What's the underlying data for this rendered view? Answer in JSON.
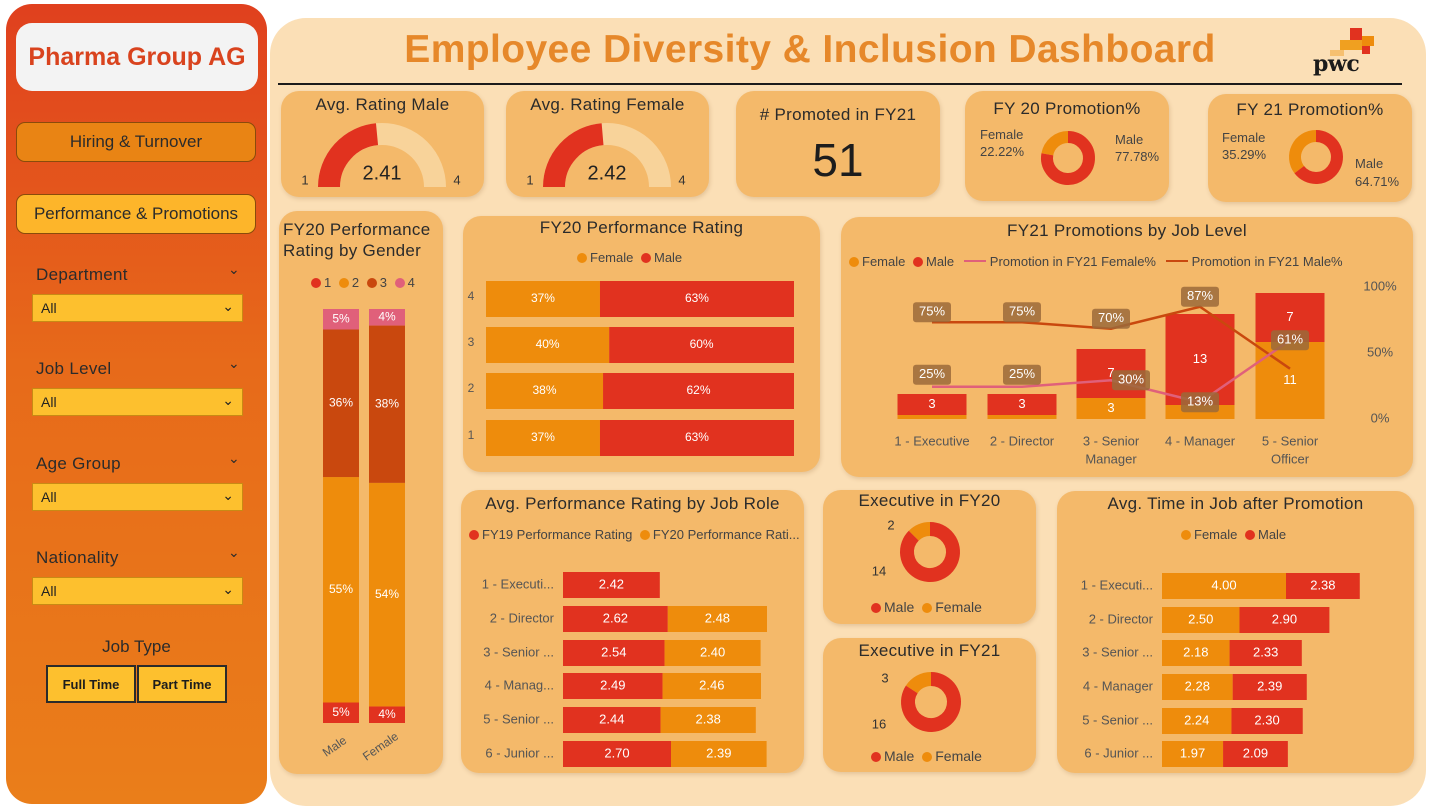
{
  "brand": "Pharma Group AG",
  "nav": {
    "hiring": "Hiring & Turnover",
    "performance": "Performance & Promotions"
  },
  "filters": [
    {
      "label": "Department",
      "value": "All"
    },
    {
      "label": "Job Level",
      "value": "All"
    },
    {
      "label": "Age Group",
      "value": "All"
    },
    {
      "label": "Nationality",
      "value": "All"
    }
  ],
  "job_type": {
    "label": "Job Type",
    "full": "Full Time",
    "part": "Part Time"
  },
  "title": "Employee Diversity & Inclusion Dashboard",
  "logo_text": "pwc",
  "colors": {
    "female": "#ee8c0c",
    "male": "#e1321f",
    "r1": "#e1321f",
    "r2": "#ee8c0c",
    "r3": "#c9480e",
    "r4": "#e0607a",
    "line_female": "#e0607a",
    "line_male": "#c9480e"
  },
  "kpi": {
    "rating_male": {
      "title": "Avg. Rating Male",
      "value": 2.41,
      "value_label": "2.41",
      "min": "1",
      "max": "4"
    },
    "rating_female": {
      "title": "Avg. Rating Female",
      "value": 2.42,
      "value_label": "2.42",
      "min": "1",
      "max": "4"
    },
    "promoted": {
      "title": "# Promoted in FY21",
      "value": "51"
    },
    "fy20": {
      "title": "FY 20 Promotion%",
      "female_label": "Female",
      "female_pct": "22.22%",
      "male_label": "Male",
      "male_pct": "77.78%",
      "female": 22.22,
      "male": 77.78
    },
    "fy21": {
      "title": "FY 21 Promotion%",
      "female_label": "Female",
      "female_pct": "35.29%",
      "male_label": "Male",
      "male_pct": "64.71%",
      "female": 35.29,
      "male": 64.71
    }
  },
  "chart_data": [
    {
      "id": "gender_rating",
      "type": "bar",
      "title": "FY20 Performance Rating by Gender",
      "categories": [
        "Male",
        "Female"
      ],
      "legend": [
        "1",
        "2",
        "3",
        "4"
      ],
      "series": [
        {
          "name": "1",
          "values": [
            5,
            4
          ],
          "labels": [
            "5%",
            "4%"
          ]
        },
        {
          "name": "2",
          "values": [
            55,
            54
          ],
          "labels": [
            "55%",
            "54%"
          ]
        },
        {
          "name": "3",
          "values": [
            36,
            38
          ],
          "labels": [
            "36%",
            "38%"
          ]
        },
        {
          "name": "4",
          "values": [
            5,
            4
          ],
          "labels": [
            "5%",
            "4%"
          ]
        }
      ]
    },
    {
      "id": "perf_rating",
      "type": "bar",
      "title": "FY20 Performance Rating",
      "legend": [
        "Female",
        "Male"
      ],
      "categories": [
        "4",
        "3",
        "2",
        "1"
      ],
      "series": [
        {
          "name": "Female",
          "values": [
            37,
            40,
            38,
            37
          ],
          "labels": [
            "37%",
            "40%",
            "38%",
            "37%"
          ]
        },
        {
          "name": "Male",
          "values": [
            63,
            60,
            62,
            63
          ],
          "labels": [
            "63%",
            "60%",
            "62%",
            "63%"
          ]
        }
      ]
    },
    {
      "id": "promo_level",
      "type": "bar",
      "title": "FY21 Promotions by Job Level",
      "legend": [
        "Female",
        "Male",
        "Promotion in FY21 Female%",
        "Promotion in FY21 Male%"
      ],
      "categories": [
        "1 - Executive",
        "2 - Director",
        "3 - Senior Manager",
        "4 - Manager",
        "5 - Senior Officer"
      ],
      "category_lines": [
        [
          "1 - Executive"
        ],
        [
          "2 - Director"
        ],
        [
          "3 - Senior",
          "Manager"
        ],
        [
          "4 - Manager"
        ],
        [
          "5 - Senior",
          "Officer"
        ]
      ],
      "female": [
        0,
        0,
        3,
        2,
        11
      ],
      "male": [
        3,
        3,
        7,
        13,
        7
      ],
      "female_labels": [
        "",
        "",
        "3",
        "",
        "11"
      ],
      "male_labels": [
        "3",
        "3",
        "7",
        "13",
        "7"
      ],
      "female_pct": [
        25,
        25,
        30,
        13,
        61
      ],
      "male_pct": [
        75,
        75,
        70,
        87,
        39
      ],
      "female_pct_labels": [
        "25%",
        "25%",
        "30%",
        "13%",
        "61%"
      ],
      "male_pct_labels": [
        "75%",
        "75%",
        "70%",
        "87%",
        ""
      ],
      "y2_ticks": [
        "100%",
        "50%",
        "0%"
      ]
    },
    {
      "id": "job_role",
      "type": "bar",
      "title": "Avg. Performance Rating by Job Role",
      "legend": [
        "FY19 Performance Rating",
        "FY20 Performance Rati..."
      ],
      "categories": [
        "1 - Executi...",
        "2 - Director",
        "3 - Senior ...",
        "4 - Manag...",
        "5 - Senior ...",
        "6 - Junior ..."
      ],
      "series": [
        {
          "name": "FY19 Performance Rating",
          "values": [
            2.42,
            2.62,
            2.54,
            2.49,
            2.44,
            2.7
          ],
          "labels": [
            "2.42",
            "2.62",
            "2.54",
            "2.49",
            "2.44",
            "2.70"
          ]
        },
        {
          "name": "FY20 Performance Rating",
          "values": [
            0,
            2.48,
            2.4,
            2.46,
            2.38,
            2.39
          ],
          "labels": [
            "",
            "2.48",
            "2.40",
            "2.46",
            "2.38",
            "2.39"
          ]
        }
      ]
    },
    {
      "id": "exec_fy20",
      "type": "pie",
      "title": "Executive in FY20",
      "legend": [
        "Male",
        "Female"
      ],
      "values": [
        14,
        2
      ],
      "labels": [
        "14",
        "2"
      ]
    },
    {
      "id": "exec_fy21",
      "type": "pie",
      "title": "Executive in FY21",
      "legend": [
        "Male",
        "Female"
      ],
      "values": [
        16,
        3
      ],
      "labels": [
        "16",
        "3"
      ]
    },
    {
      "id": "time_in_job",
      "type": "bar",
      "title": "Avg. Time in Job after Promotion",
      "legend": [
        "Female",
        "Male"
      ],
      "categories": [
        "1 - Executi...",
        "2 - Director",
        "3 - Senior ...",
        "4 - Manager",
        "5 - Senior ...",
        "6 - Junior ..."
      ],
      "series": [
        {
          "name": "Female",
          "values": [
            4.0,
            2.5,
            2.18,
            2.28,
            2.24,
            1.97
          ],
          "labels": [
            "4.00",
            "2.50",
            "2.18",
            "2.28",
            "2.24",
            "1.97"
          ]
        },
        {
          "name": "Male",
          "values": [
            2.38,
            2.9,
            2.33,
            2.39,
            2.3,
            2.09
          ],
          "labels": [
            "2.38",
            "2.90",
            "2.33",
            "2.39",
            "2.30",
            "2.09"
          ]
        }
      ]
    }
  ]
}
